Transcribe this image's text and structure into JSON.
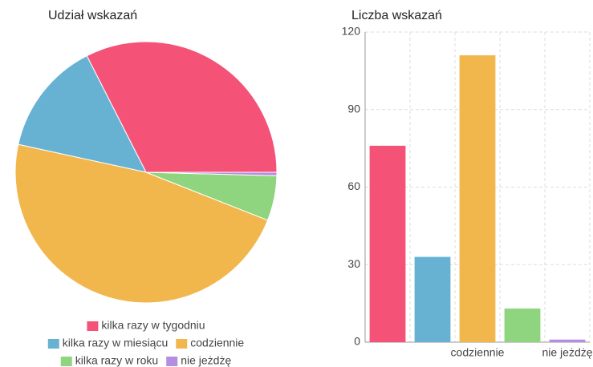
{
  "chart_data": [
    {
      "type": "pie",
      "title": "Udział wskazań",
      "categories": [
        "kilka razy w tygodniu",
        "kilka razy w miesiącu",
        "codziennie",
        "kilka razy w roku",
        "nie jeżdżę"
      ],
      "values": [
        76,
        33,
        111,
        13,
        1
      ],
      "colors": [
        "#f45277",
        "#67b2d3",
        "#f2b74c",
        "#8fd47e",
        "#b68ee0"
      ]
    },
    {
      "type": "bar",
      "title": "Liczba wskazań",
      "categories": [
        null,
        null,
        "codziennie",
        null,
        "nie jeżdżę"
      ],
      "values": [
        76,
        33,
        111,
        13,
        1
      ],
      "colors": [
        "#f45277",
        "#67b2d3",
        "#f2b74c",
        "#8fd47e",
        "#b68ee0"
      ],
      "ylim": [
        0,
        120
      ],
      "yticks": [
        0,
        30,
        60,
        90,
        120
      ],
      "grid": true
    }
  ]
}
